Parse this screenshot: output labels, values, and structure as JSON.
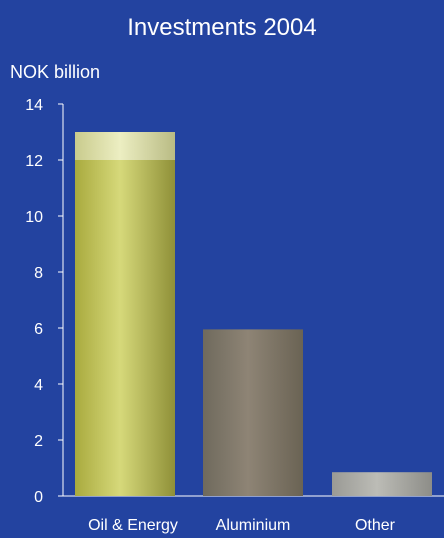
{
  "chart_data": {
    "type": "bar",
    "title": "Investments 2004",
    "ylabel": "NOK billion",
    "categories": [
      "Oil & Energy",
      "Aluminium",
      "Other"
    ],
    "values": [
      13.0,
      5.95,
      0.85
    ],
    "stacked_highlight": {
      "category": "Oil & Energy",
      "lower": 12.0,
      "upper": 13.0
    },
    "ylim": [
      0,
      14
    ],
    "yticks": [
      0,
      2,
      4,
      6,
      8,
      10,
      12,
      14
    ],
    "grid": false,
    "colors": {
      "background": "#2343a0",
      "Oil & Energy": "#c4c457",
      "Oil & Energy highlight": "#dfe3a6",
      "Aluminium": "#867c6d",
      "Other": "#a8a8a3"
    }
  }
}
